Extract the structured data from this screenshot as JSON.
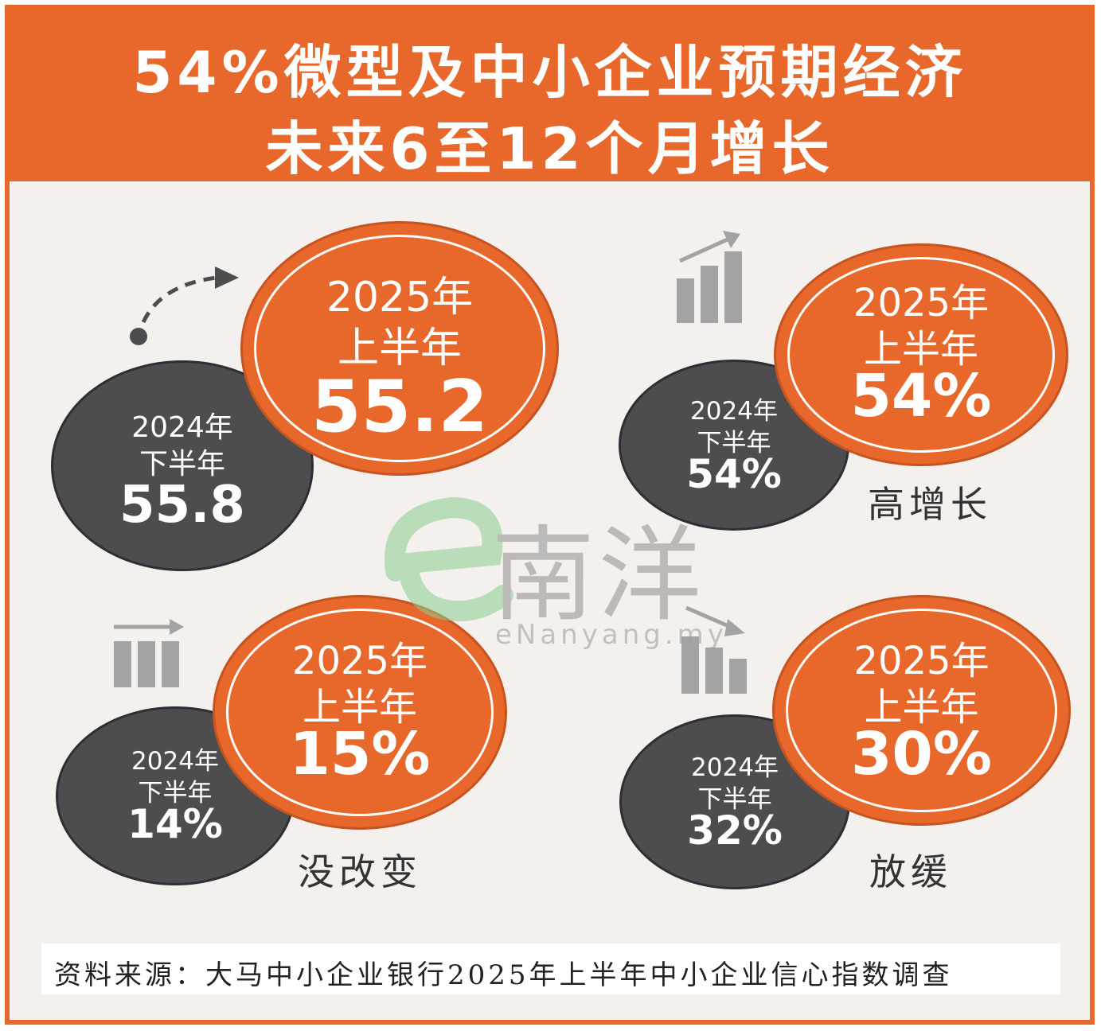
{
  "title": {
    "line1": "54%微型及中小企业预期经济",
    "line2": "未来6至12个月增长"
  },
  "colors": {
    "accent": "#e8672a",
    "dark": "#4d4d4f",
    "background": "#f4f0ed"
  },
  "chart_data": {
    "type": "infographic",
    "panels": [
      {
        "caption": "",
        "icon": "dashed-arrow-icon",
        "previous": {
          "period_line1": "2024年",
          "period_line2": "下半年",
          "value_label": "55.8",
          "value": 55.8
        },
        "current": {
          "period_line1": "2025年",
          "period_line2": "上半年",
          "value_label": "55.2",
          "value": 55.2
        }
      },
      {
        "caption": "高增长",
        "icon": "rising-bars-icon",
        "previous": {
          "period_line1": "2024年",
          "period_line2": "下半年",
          "value_label": "54%",
          "value": 54
        },
        "current": {
          "period_line1": "2025年",
          "period_line2": "上半年",
          "value_label": "54%",
          "value": 54
        }
      },
      {
        "caption": "没改变",
        "icon": "flat-bars-icon",
        "previous": {
          "period_line1": "2024年",
          "period_line2": "下半年",
          "value_label": "14%",
          "value": 14
        },
        "current": {
          "period_line1": "2025年",
          "period_line2": "上半年",
          "value_label": "15%",
          "value": 15
        }
      },
      {
        "caption": "放缓",
        "icon": "falling-bars-icon",
        "previous": {
          "period_line1": "2024年",
          "period_line2": "下半年",
          "value_label": "32%",
          "value": 32
        },
        "current": {
          "period_line1": "2025年",
          "period_line2": "上半年",
          "value_label": "30%",
          "value": 30
        }
      }
    ]
  },
  "source": "资料来源：大马中小企业银行2025年上半年中小企业信心指数调查",
  "watermark": {
    "brand": "南洋",
    "domain": "eNanyang.my"
  }
}
